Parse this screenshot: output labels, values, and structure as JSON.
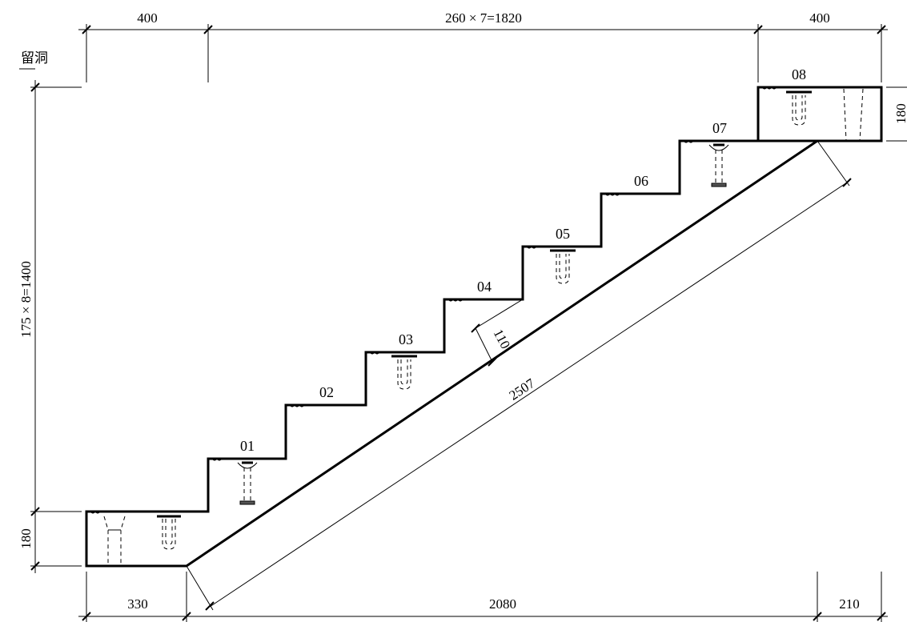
{
  "dimensions": {
    "top_left": "400",
    "top_middle": "260 × 7=1820",
    "top_right": "400",
    "left_total": "175 × 8=1400",
    "left_landing": "180",
    "right_landing": "180",
    "bottom_left": "330",
    "bottom_middle": "2080",
    "bottom_right": "210",
    "slab_thickness": "110",
    "slab_length": "2507"
  },
  "steps": [
    "01",
    "02",
    "03",
    "04",
    "05",
    "06",
    "07",
    "08"
  ],
  "corner_text": "留洞"
}
